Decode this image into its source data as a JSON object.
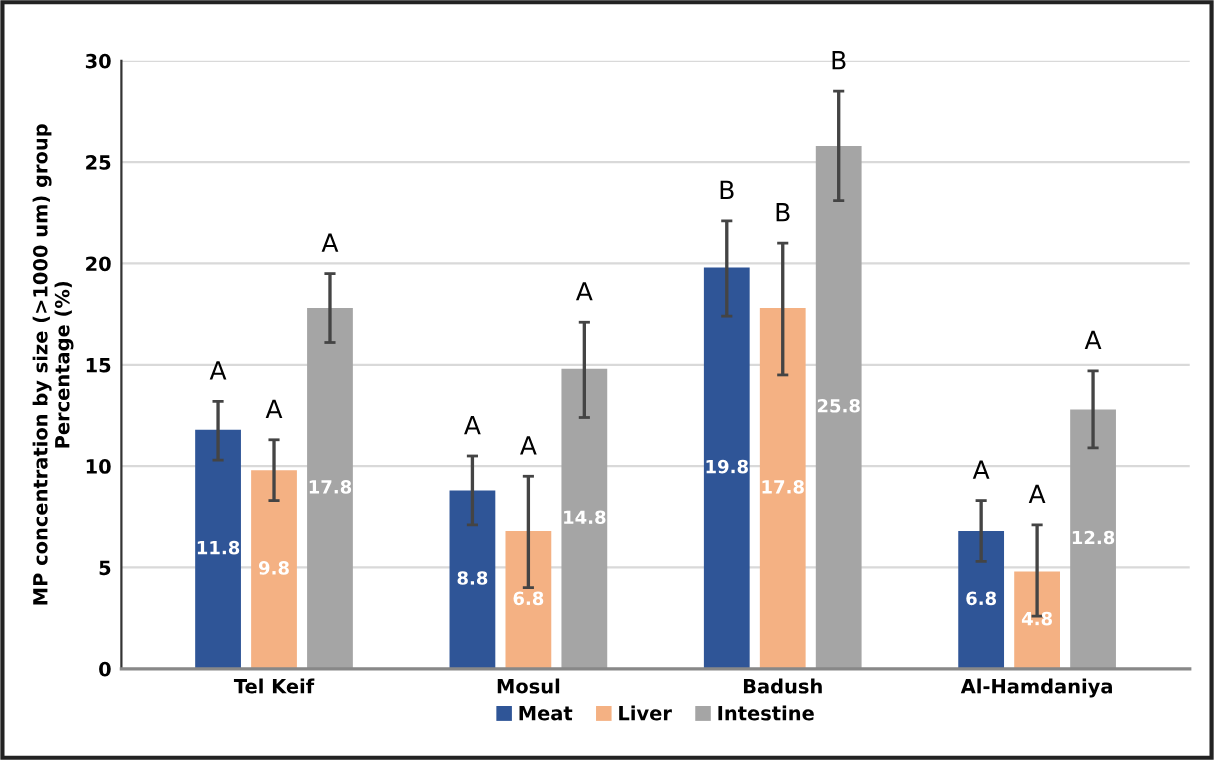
{
  "chart_data": {
    "type": "bar",
    "ylabel": "MP concentration by size (>1000 um) group\nPercentage (%)",
    "categories": [
      "Tel Keif",
      "Mosul",
      "Badush",
      "Al-Hamdaniya"
    ],
    "series": [
      {
        "name": "Meat",
        "color": "#2f5597",
        "values": [
          11.8,
          8.8,
          19.8,
          6.8
        ],
        "errors": [
          [
            10.3,
            13.2
          ],
          [
            7.1,
            10.5
          ],
          [
            17.4,
            22.1
          ],
          [
            5.3,
            8.3
          ]
        ]
      },
      {
        "name": "Liver",
        "color": "#f4b183",
        "values": [
          9.8,
          6.8,
          17.8,
          4.8
        ],
        "errors": [
          [
            8.3,
            11.3
          ],
          [
            4.0,
            9.5
          ],
          [
            14.5,
            21.0
          ],
          [
            2.6,
            7.1
          ]
        ]
      },
      {
        "name": "Intestine",
        "color": "#a5a5a5",
        "values": [
          17.8,
          14.8,
          25.8,
          12.8
        ],
        "errors": [
          [
            16.1,
            19.5
          ],
          [
            12.4,
            17.1
          ],
          [
            23.1,
            28.5
          ],
          [
            10.9,
            14.7
          ]
        ]
      }
    ],
    "annotations": [
      "A",
      "A",
      "A",
      "A",
      "A",
      "A",
      "B",
      "B",
      "B",
      "A",
      "A",
      "A"
    ],
    "ylim": [
      0,
      30
    ],
    "yticks": [
      0,
      5,
      10,
      15,
      20,
      25,
      30
    ],
    "grid": "y",
    "legend": "bottom",
    "data_labels": true
  }
}
